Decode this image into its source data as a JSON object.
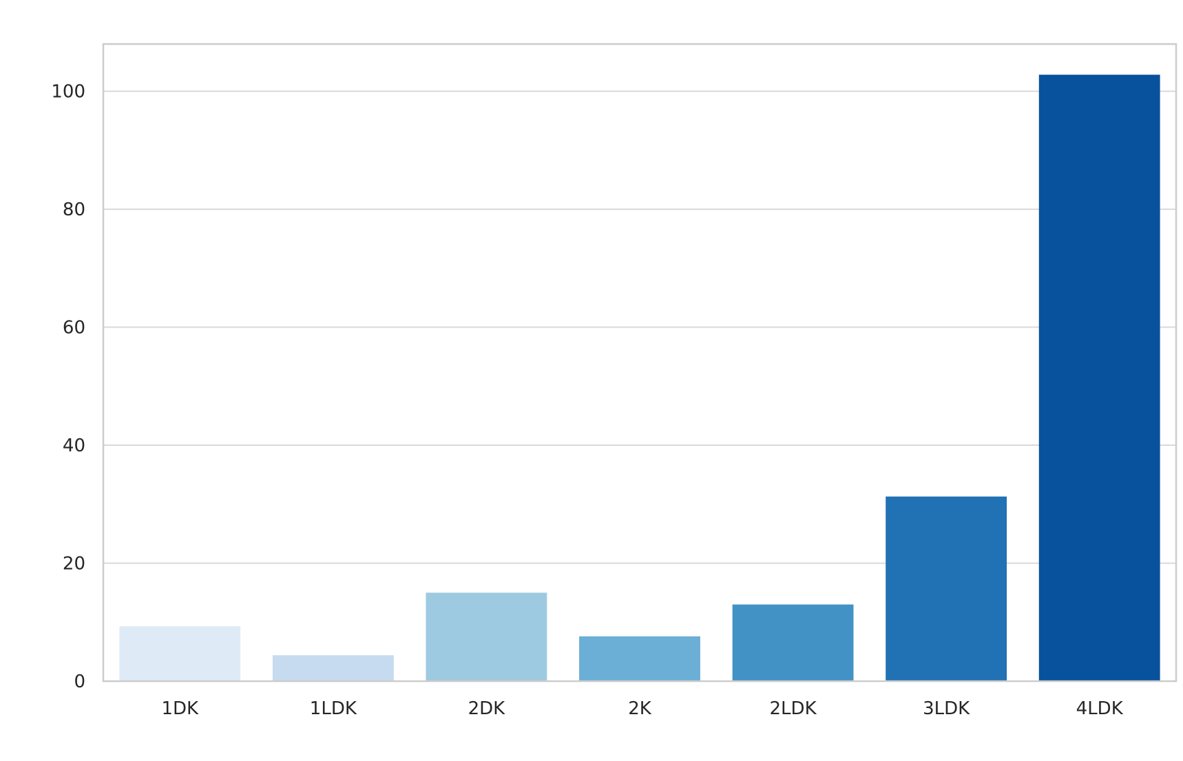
{
  "chart_data": {
    "type": "bar",
    "title": "",
    "xlabel": "",
    "ylabel": "",
    "categories": [
      "1DK",
      "1LDK",
      "2DK",
      "2K",
      "2LDK",
      "3LDK",
      "4LDK"
    ],
    "values": [
      9.3,
      4.4,
      15.0,
      7.6,
      13.0,
      31.3,
      102.8
    ],
    "colors": [
      "#deebf7",
      "#c6dbef",
      "#9ecae1",
      "#6baed6",
      "#4292c6",
      "#2171b5",
      "#08519c"
    ],
    "ylim": [
      0,
      108
    ],
    "yticks": [
      0,
      20,
      40,
      60,
      80,
      100
    ],
    "ytick_labels": [
      "0",
      "20",
      "40",
      "60",
      "80",
      "100"
    ],
    "grid": true,
    "legend": "none"
  }
}
